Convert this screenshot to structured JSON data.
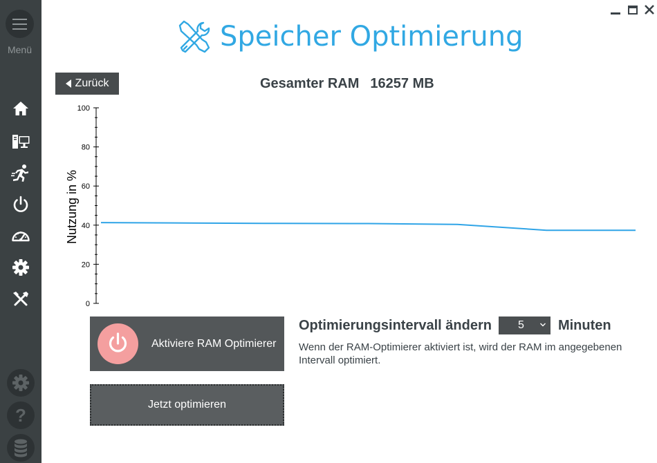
{
  "sidebar": {
    "menu_label": "Menü",
    "nav": [
      "home-icon",
      "system-info-icon",
      "running-icon",
      "power-icon",
      "speedometer-icon",
      "gear-icon",
      "tools-icon"
    ],
    "bottom": [
      "settings-icon",
      "help-icon",
      "database-icon"
    ]
  },
  "header": {
    "title": "Speicher Optimierung",
    "back_label": "Zurück",
    "ram_label": "Gesamter RAM",
    "ram_value": "16257 MB"
  },
  "chart_data": {
    "type": "line",
    "ylabel": "Nutzung in %",
    "ylim": [
      0,
      100
    ],
    "yticks": [
      0,
      20,
      40,
      60,
      80,
      100
    ],
    "series": [
      {
        "values": [
          41.3,
          41.1,
          40.9,
          40.8,
          40.4,
          37.4,
          37.4
        ]
      }
    ],
    "line_color": "#2fa4e7",
    "grid": false
  },
  "controls": {
    "activate_label": "Aktiviere RAM Optimierer",
    "optimize_label": "Jetzt optimieren",
    "interval_label": "Optimierungsintervall ändern",
    "interval_value": "5",
    "interval_unit": "Minuten",
    "description": "Wenn der RAM-Optimierer aktiviert ist, wird der RAM im angegebenen Intervall optimiert."
  },
  "colors": {
    "accent": "#31a8e3",
    "sidebar": "#3b4143",
    "power_inactive": "#f49f9f"
  }
}
